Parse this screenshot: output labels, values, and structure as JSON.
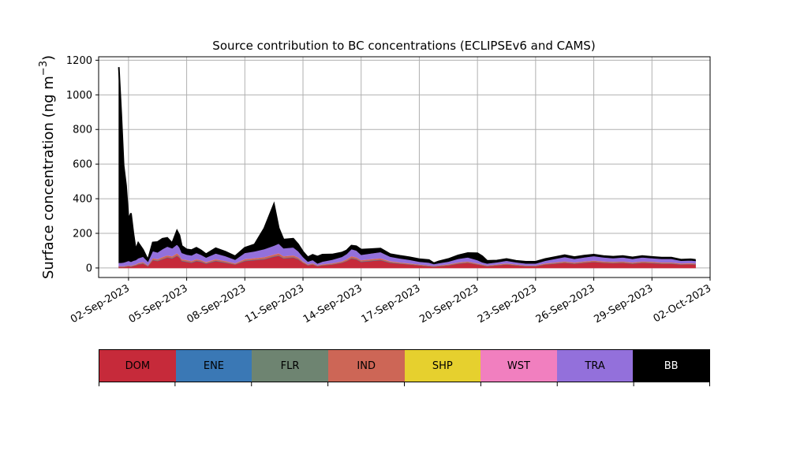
{
  "chart_data": {
    "type": "area",
    "stacked": true,
    "title": "Source contribution to BC concentrations (ECLIPSEv6 and CAMS)",
    "ylabel": "Surface concentration (ng m",
    "ylabel_unit_exponent": "−3",
    "ylabel_close": ")",
    "xlabel": "",
    "ylim": [
      -55,
      1220
    ],
    "yticks": [
      0,
      200,
      400,
      600,
      800,
      1000,
      1200
    ],
    "xlim": [
      "2023-08-31T11:00",
      "2023-10-02T00:00"
    ],
    "xticks": [
      "2023-09-02",
      "2023-09-05",
      "2023-09-08",
      "2023-09-11",
      "2023-09-14",
      "2023-09-17",
      "2023-09-20",
      "2023-09-23",
      "2023-09-26",
      "2023-09-29",
      "2023-10-02"
    ],
    "xtick_labels": [
      "02-Sep-2023",
      "05-Sep-2023",
      "08-Sep-2023",
      "11-Sep-2023",
      "14-Sep-2023",
      "17-Sep-2023",
      "20-Sep-2023",
      "23-Sep-2023",
      "26-Sep-2023",
      "29-Sep-2023",
      "02-Oct-2023"
    ],
    "grid": true,
    "x": [
      "2023-09-01T12:00",
      "2023-09-01T15:00",
      "2023-09-01T18:00",
      "2023-09-01T21:00",
      "2023-09-02T00:00",
      "2023-09-02T03:00",
      "2023-09-02T06:00",
      "2023-09-02T09:00",
      "2023-09-02T12:00",
      "2023-09-02T18:00",
      "2023-09-03T00:00",
      "2023-09-03T06:00",
      "2023-09-03T12:00",
      "2023-09-03T18:00",
      "2023-09-04T00:00",
      "2023-09-04T06:00",
      "2023-09-04T12:00",
      "2023-09-04T15:00",
      "2023-09-04T18:00",
      "2023-09-05T00:00",
      "2023-09-05T06:00",
      "2023-09-05T12:00",
      "2023-09-05T18:00",
      "2023-09-06T00:00",
      "2023-09-06T12:00",
      "2023-09-07T00:00",
      "2023-09-07T12:00",
      "2023-09-08T00:00",
      "2023-09-08T12:00",
      "2023-09-09T00:00",
      "2023-09-09T12:00",
      "2023-09-09T18:00",
      "2023-09-10T00:00",
      "2023-09-10T12:00",
      "2023-09-10T18:00",
      "2023-09-11T00:00",
      "2023-09-11T06:00",
      "2023-09-11T12:00",
      "2023-09-11T18:00",
      "2023-09-12T00:00",
      "2023-09-12T12:00",
      "2023-09-13T00:00",
      "2023-09-13T06:00",
      "2023-09-13T12:00",
      "2023-09-13T18:00",
      "2023-09-14T00:00",
      "2023-09-14T12:00",
      "2023-09-15T00:00",
      "2023-09-15T12:00",
      "2023-09-16T00:00",
      "2023-09-16T12:00",
      "2023-09-17T00:00",
      "2023-09-17T12:00",
      "2023-09-17T18:00",
      "2023-09-18T00:00",
      "2023-09-18T12:00",
      "2023-09-19T00:00",
      "2023-09-19T12:00",
      "2023-09-20T00:00",
      "2023-09-20T06:00",
      "2023-09-20T12:00",
      "2023-09-21T00:00",
      "2023-09-21T12:00",
      "2023-09-22T00:00",
      "2023-09-22T12:00",
      "2023-09-23T00:00",
      "2023-09-23T12:00",
      "2023-09-24T00:00",
      "2023-09-24T12:00",
      "2023-09-25T00:00",
      "2023-09-25T12:00",
      "2023-09-26T00:00",
      "2023-09-26T12:00",
      "2023-09-27T00:00",
      "2023-09-27T12:00",
      "2023-09-28T00:00",
      "2023-09-28T12:00",
      "2023-09-29T00:00",
      "2023-09-29T12:00",
      "2023-09-30T00:00",
      "2023-09-30T12:00",
      "2023-10-01T00:00",
      "2023-10-01T06:00"
    ],
    "series": [
      {
        "name": "DOM",
        "color": "#c62a3a",
        "values": [
          5,
          5,
          5,
          8,
          10,
          8,
          12,
          15,
          20,
          25,
          10,
          45,
          40,
          50,
          60,
          55,
          70,
          60,
          40,
          35,
          30,
          40,
          35,
          25,
          40,
          30,
          20,
          40,
          45,
          50,
          65,
          70,
          55,
          60,
          50,
          30,
          15,
          20,
          10,
          15,
          20,
          30,
          40,
          55,
          50,
          35,
          40,
          45,
          30,
          25,
          20,
          15,
          10,
          8,
          10,
          15,
          25,
          30,
          20,
          15,
          10,
          15,
          20,
          15,
          10,
          10,
          20,
          25,
          30,
          25,
          30,
          35,
          30,
          28,
          30,
          25,
          30,
          28,
          25,
          25,
          20,
          22,
          20
        ]
      },
      {
        "name": "ENE",
        "color": "#3a78b5",
        "values": [
          1,
          1,
          1,
          1,
          1,
          1,
          1,
          1,
          2,
          2,
          1,
          2,
          2,
          2,
          2,
          2,
          2,
          2,
          2,
          2,
          2,
          2,
          2,
          2,
          2,
          2,
          1,
          2,
          2,
          2,
          2,
          2,
          2,
          2,
          2,
          1,
          1,
          1,
          1,
          1,
          1,
          1,
          1,
          2,
          2,
          2,
          2,
          2,
          2,
          1,
          1,
          1,
          1,
          1,
          1,
          1,
          1,
          1,
          1,
          1,
          1,
          1,
          1,
          1,
          1,
          1,
          1,
          1,
          1,
          1,
          1,
          1,
          1,
          1,
          1,
          1,
          1,
          1,
          1,
          1,
          1,
          1,
          1
        ]
      },
      {
        "name": "FLR",
        "color": "#6e8471",
        "values": [
          1,
          1,
          1,
          1,
          1,
          1,
          1,
          1,
          1,
          1,
          1,
          1,
          1,
          1,
          1,
          1,
          1,
          1,
          1,
          1,
          1,
          1,
          1,
          1,
          1,
          1,
          1,
          1,
          1,
          1,
          1,
          1,
          1,
          1,
          1,
          1,
          1,
          1,
          1,
          1,
          1,
          1,
          1,
          1,
          1,
          1,
          1,
          1,
          1,
          1,
          1,
          1,
          1,
          1,
          1,
          1,
          1,
          1,
          1,
          1,
          1,
          1,
          1,
          1,
          1,
          1,
          1,
          1,
          1,
          1,
          1,
          1,
          1,
          1,
          1,
          1,
          1,
          1,
          1,
          1,
          1,
          1,
          1
        ]
      },
      {
        "name": "IND",
        "color": "#cd6656",
        "values": [
          3,
          3,
          3,
          3,
          3,
          3,
          3,
          4,
          5,
          6,
          4,
          8,
          8,
          10,
          10,
          10,
          12,
          10,
          8,
          8,
          7,
          8,
          7,
          6,
          8,
          7,
          5,
          8,
          9,
          10,
          10,
          12,
          10,
          10,
          8,
          6,
          4,
          5,
          3,
          4,
          5,
          6,
          8,
          10,
          9,
          7,
          8,
          8,
          6,
          5,
          4,
          3,
          3,
          2,
          3,
          4,
          5,
          6,
          4,
          3,
          3,
          3,
          4,
          3,
          3,
          3,
          4,
          5,
          6,
          5,
          6,
          6,
          6,
          6,
          6,
          5,
          6,
          6,
          5,
          5,
          4,
          4,
          4
        ]
      },
      {
        "name": "SHP",
        "color": "#e6d02e",
        "values": [
          0,
          0,
          0,
          0,
          0,
          0,
          0,
          0,
          0,
          0,
          0,
          0,
          0,
          0,
          0,
          0,
          0,
          0,
          0,
          0,
          0,
          0,
          0,
          0,
          0,
          0,
          0,
          0,
          0,
          0,
          0,
          0,
          0,
          0,
          0,
          0,
          0,
          0,
          0,
          0,
          0,
          0,
          0,
          0,
          0,
          0,
          0,
          0,
          0,
          0,
          0,
          0,
          0,
          0,
          0,
          0,
          0,
          0,
          0,
          0,
          0,
          0,
          0,
          0,
          0,
          0,
          0,
          0,
          0,
          0,
          0,
          0,
          0,
          0,
          0,
          0,
          0,
          0,
          0,
          0,
          0,
          0,
          0
        ]
      },
      {
        "name": "WST",
        "color": "#f17fbf",
        "values": [
          1,
          1,
          1,
          1,
          1,
          1,
          1,
          1,
          1,
          1,
          1,
          1,
          1,
          1,
          1,
          1,
          1,
          1,
          1,
          1,
          1,
          1,
          1,
          1,
          1,
          1,
          1,
          1,
          1,
          1,
          1,
          1,
          1,
          1,
          1,
          1,
          1,
          1,
          1,
          1,
          1,
          1,
          1,
          1,
          1,
          1,
          1,
          1,
          1,
          1,
          1,
          1,
          1,
          1,
          1,
          1,
          1,
          1,
          1,
          1,
          1,
          1,
          1,
          1,
          1,
          1,
          1,
          1,
          1,
          1,
          1,
          1,
          1,
          1,
          1,
          1,
          1,
          1,
          1,
          1,
          1,
          1,
          1
        ]
      },
      {
        "name": "TRA",
        "color": "#9370db",
        "values": [
          19,
          19,
          21,
          22,
          25,
          22,
          24,
          24,
          27,
          30,
          20,
          40,
          38,
          45,
          50,
          45,
          50,
          45,
          35,
          30,
          32,
          35,
          30,
          25,
          32,
          28,
          20,
          35,
          38,
          45,
          50,
          55,
          45,
          45,
          35,
          25,
          15,
          18,
          10,
          15,
          20,
          25,
          30,
          40,
          38,
          30,
          32,
          35,
          25,
          22,
          20,
          15,
          15,
          10,
          12,
          15,
          20,
          22,
          18,
          12,
          10,
          12,
          15,
          12,
          10,
          10,
          15,
          20,
          25,
          20,
          22,
          25,
          22,
          20,
          22,
          20,
          22,
          20,
          20,
          20,
          15,
          15,
          14
        ]
      },
      {
        "name": "BB",
        "color": "#000000",
        "values": [
          1130,
          860,
          560,
          440,
          240,
          280,
          160,
          60,
          90,
          40,
          10,
          50,
          60,
          60,
          50,
          30,
          80,
          70,
          40,
          30,
          30,
          30,
          25,
          20,
          30,
          25,
          20,
          30,
          40,
          120,
          240,
          90,
          50,
          50,
          40,
          30,
          25,
          30,
          40,
          40,
          30,
          25,
          20,
          20,
          25,
          30,
          25,
          20,
          15,
          15,
          15,
          15,
          15,
          5,
          10,
          15,
          20,
          25,
          40,
          35,
          15,
          10,
          10,
          8,
          10,
          10,
          10,
          10,
          10,
          10,
          10,
          8,
          8,
          8,
          8,
          8,
          8,
          7,
          7,
          7,
          6,
          6,
          6
        ]
      }
    ]
  }
}
